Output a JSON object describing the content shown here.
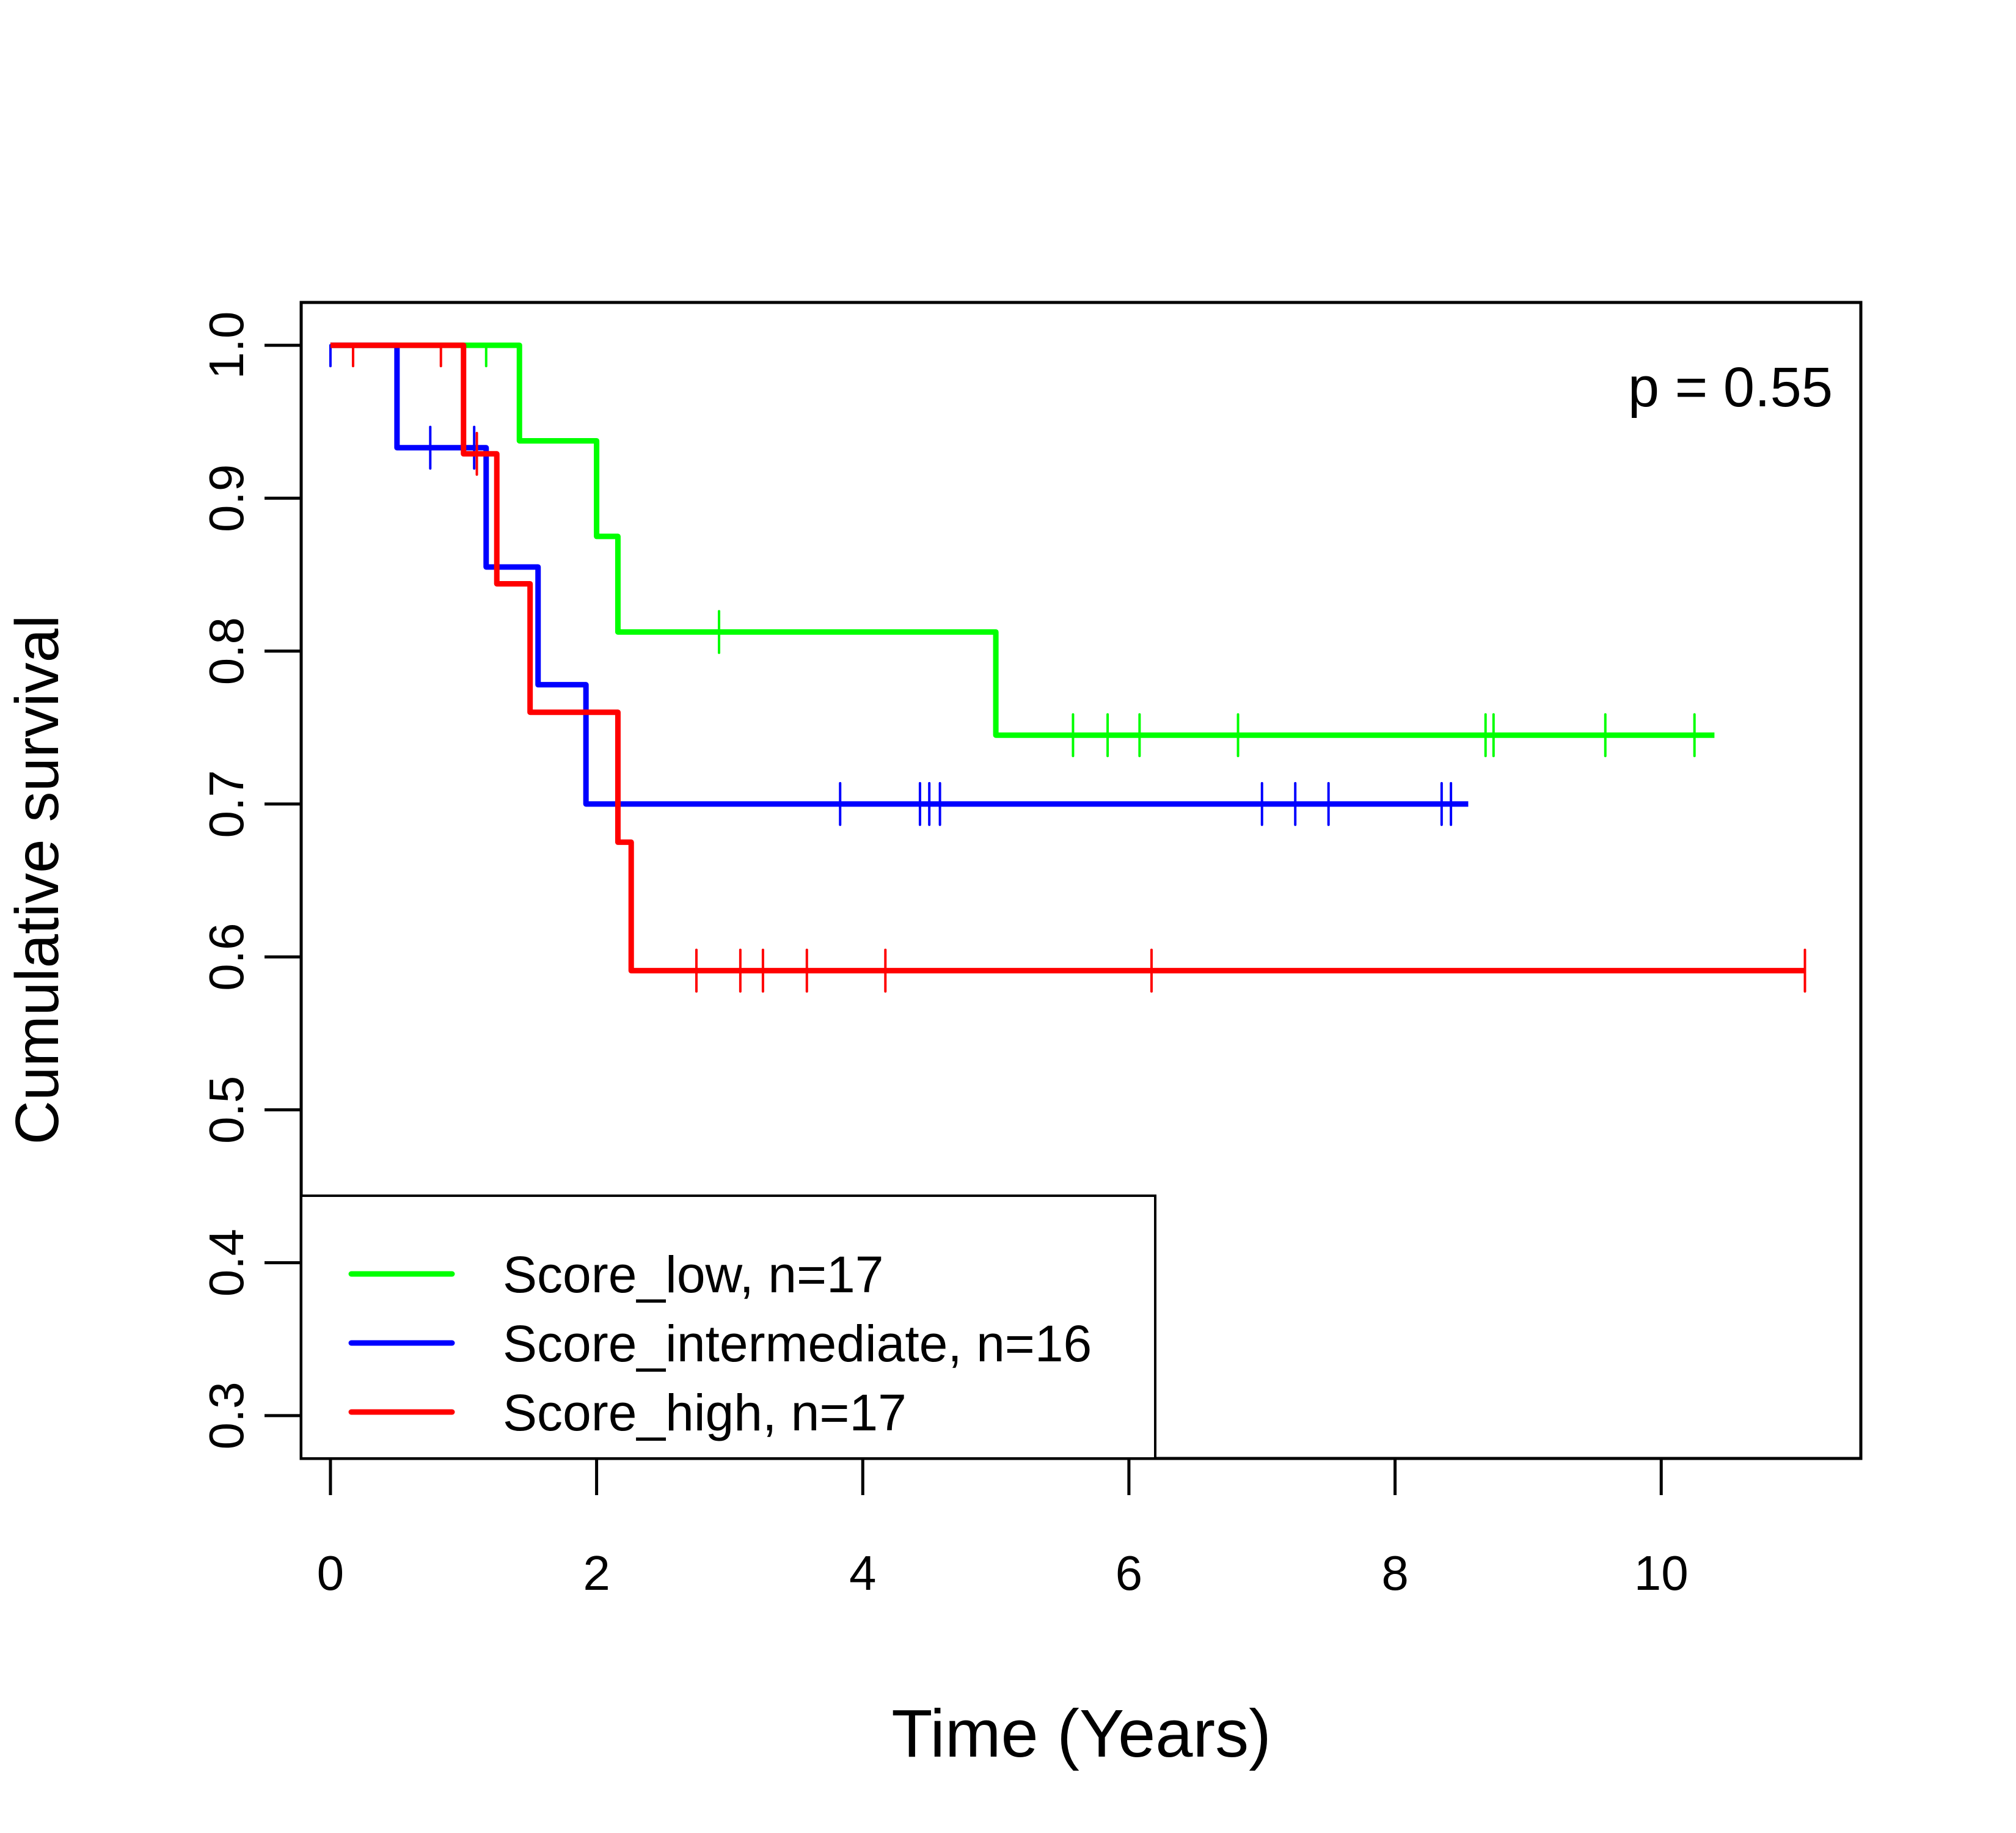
{
  "chart_data": {
    "type": "line",
    "subtype": "kaplan-meier step",
    "title": "",
    "xlabel": "Time (Years)",
    "ylabel": "Cumulative survival",
    "xlim": [
      -0.22,
      11.5
    ],
    "ylim": [
      0.272,
      1.028
    ],
    "xticks": [
      0,
      2,
      4,
      6,
      8,
      10
    ],
    "xtick_labels": [
      "0",
      "2",
      "4",
      "6",
      "8",
      "10"
    ],
    "yticks": [
      0.3,
      0.4,
      0.5,
      0.6,
      0.7,
      0.8,
      0.9,
      1.0
    ],
    "ytick_labels": [
      "0.3",
      "0.4",
      "0.5",
      "0.6",
      "0.7",
      "0.8",
      "0.9",
      "1.0"
    ],
    "grid": false,
    "annotation": "p = 0.55",
    "legend_position": "bottom-left",
    "series": [
      {
        "name": "Score_low, n=17",
        "color": "#00ff00",
        "steps": [
          [
            0,
            1.0
          ],
          [
            1.42,
            0.9375
          ],
          [
            2.0,
            0.875
          ],
          [
            2.16,
            0.8125
          ],
          [
            5.0,
            0.745
          ]
        ],
        "end_time": 10.4,
        "censor_times": [
          1.17,
          2.92,
          5.58,
          5.84,
          6.08,
          6.82,
          8.68,
          8.74,
          9.58,
          10.25
        ]
      },
      {
        "name": "Score_intermediate, n=16",
        "color": "#0000ff",
        "steps": [
          [
            0,
            1.0
          ],
          [
            0.5,
            0.933
          ],
          [
            1.17,
            0.855
          ],
          [
            1.56,
            0.778
          ],
          [
            1.92,
            0.7
          ]
        ],
        "end_time": 8.55,
        "censor_times": [
          0.0,
          0.75,
          1.08,
          3.83,
          4.43,
          4.5,
          4.58,
          7.0,
          7.25,
          7.5,
          8.35,
          8.42
        ]
      },
      {
        "name": "Score_high, n=17",
        "color": "#ff0000",
        "steps": [
          [
            0,
            1.0
          ],
          [
            1.0,
            0.929
          ],
          [
            1.25,
            0.844
          ],
          [
            1.5,
            0.76
          ],
          [
            2.16,
            0.675
          ],
          [
            2.26,
            0.591
          ]
        ],
        "end_time": 11.08,
        "censor_times": [
          0.17,
          0.83,
          1.1,
          2.75,
          3.08,
          3.25,
          3.58,
          4.17,
          6.17,
          11.08
        ]
      }
    ]
  }
}
